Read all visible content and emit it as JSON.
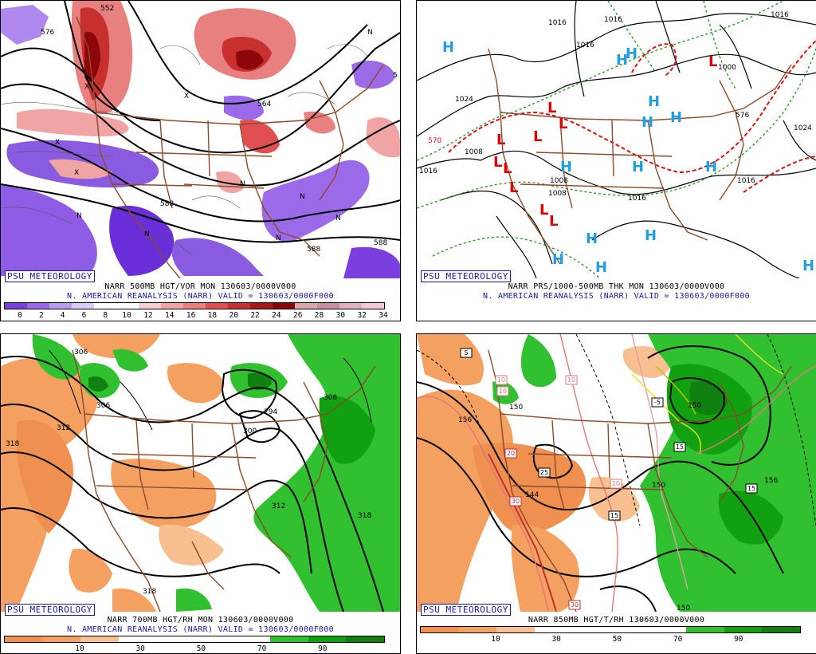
{
  "panels": {
    "vort500": {
      "credit": "PSU METEOROLOGY",
      "line1": "NARR 500MB HGT/VOR MON 130603/0000V000",
      "line2": "N. AMERICAN REANALYSIS (NARR) VALID = 130603/0000F000",
      "colorbar": [
        "#7b3fe0",
        "#9a6ae8",
        "#b89ded",
        "#d8cdf5",
        "#ffffff",
        "#ffffff",
        "#f6d0d0",
        "#f0a4a4",
        "#e88080",
        "#e05050",
        "#c83030",
        "#a81818",
        "#8c0808",
        "#d8a8a8",
        "#c890a0",
        "#e0b0c0",
        "#f4c8d4"
      ],
      "colorbar_labels": [
        "0",
        "2",
        "4",
        "6",
        "8",
        "10",
        "12",
        "14",
        "16",
        "18",
        "20",
        "22",
        "24",
        "26",
        "28",
        "30",
        "32",
        "34"
      ],
      "contour_labels": [
        "576",
        "588",
        "588",
        "588",
        "564",
        "552",
        "N",
        "N",
        "N",
        "N",
        "N",
        "N",
        "N",
        "X",
        "X",
        "X",
        "X",
        "5"
      ]
    },
    "sfc": {
      "credit": "PSU METEOROLOGY",
      "line1": "NARR PRS/1000-500MB THK MON 130603/0000V000",
      "line2": "N. AMERICAN REANALYSIS (NARR) VALID = 130603/0000F000",
      "isobar_labels": [
        "1016",
        "1016",
        "1016",
        "1016",
        "1024",
        "1024",
        "1016",
        "1008",
        "1008",
        "1008",
        "1016",
        "1016",
        "1000",
        "576",
        "570"
      ],
      "high_letter": "H",
      "low_letter": "L",
      "high_color": "#20a0e0",
      "low_color": "#e00000"
    },
    "rh700": {
      "credit": "PSU METEOROLOGY",
      "line1": "NARR 700MB HGT/RH MON 130603/0000V000",
      "line2": "N. AMERICAN REANALYSIS (NARR) VALID = 130603/0000F000",
      "colorbar": [
        "#f09050",
        "#f4a060",
        "#f8c090",
        "#ffffff",
        "#ffffff",
        "#ffffff",
        "#ffffff",
        "#30c030",
        "#10a010",
        "#108010"
      ],
      "colorbar_labels": [
        "10",
        "30",
        "50",
        "70",
        "90"
      ],
      "contour_labels": [
        "306",
        "306",
        "318",
        "312",
        "300",
        "294",
        "306",
        "312",
        "318",
        "318"
      ]
    },
    "t850": {
      "credit": "PSU METEOROLOGY",
      "line1": "NARR 850MB HGT/T/RH 130603/0000V000",
      "colorbar": [
        "#f09050",
        "#f4a060",
        "#f8c090",
        "#ffffff",
        "#ffffff",
        "#ffffff",
        "#ffffff",
        "#30c030",
        "#10a010",
        "#108010"
      ],
      "colorbar_labels": [
        "10",
        "30",
        "50",
        "70",
        "90"
      ],
      "contour_labels": [
        "156",
        "150",
        "144",
        "150",
        "156",
        "150",
        "150"
      ],
      "temp_boxes": [
        "5",
        "10",
        "10",
        "10",
        "20",
        "25",
        "30",
        "15",
        "15",
        "10",
        "30",
        "-5",
        "15"
      ]
    }
  }
}
